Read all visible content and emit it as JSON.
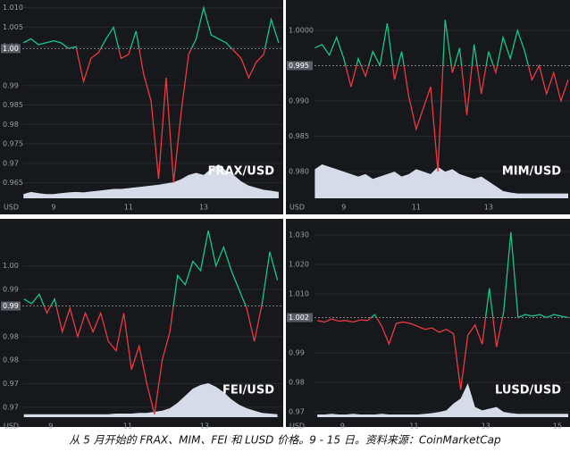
{
  "caption": "从 5 月开始的 FRAX、MIM、FEI 和 LUSD 价格。9 - 15 日。资料来源：CoinMarketCap",
  "chart_data": [
    {
      "type": "line",
      "title": "FRAX/USD",
      "xlabel": "USD",
      "up_color": "#16c784",
      "down_color": "#ea3943",
      "volume_color": "#d5dbe8",
      "grid": true,
      "xlim": [
        8.17,
        15.12
      ],
      "xticks": [
        9,
        11,
        13
      ],
      "ylim": [
        0.961,
        1.012
      ],
      "yticks": [
        {
          "value": 1.01,
          "label": "1.010"
        },
        1.005,
        {
          "value": 1.0,
          "label": "1.00"
        },
        0.99,
        0.985,
        0.98,
        0.975,
        0.97,
        0.965
      ],
      "baseline": {
        "value": 0.9995,
        "label": "1.00"
      },
      "x": [
        8.2,
        8.4,
        8.6,
        8.8,
        9.0,
        9.2,
        9.4,
        9.6,
        9.8,
        10.0,
        10.2,
        10.4,
        10.6,
        10.8,
        11.0,
        11.2,
        11.4,
        11.6,
        11.8,
        12.0,
        12.2,
        12.4,
        12.6,
        12.8,
        13.0,
        13.2,
        13.4,
        13.6,
        13.8,
        14.0,
        14.2,
        14.4,
        14.6,
        14.8,
        15.0
      ],
      "values": [
        1.001,
        1.002,
        1.0005,
        1.001,
        1.0015,
        1.001,
        0.9995,
        1.0,
        0.991,
        0.997,
        0.9985,
        1.002,
        1.005,
        0.997,
        0.998,
        1.004,
        0.993,
        0.986,
        0.966,
        0.992,
        0.965,
        0.983,
        0.998,
        1.002,
        1.01,
        1.003,
        1.002,
        1.001,
        0.999,
        0.997,
        0.992,
        0.996,
        0.998,
        1.007,
        1.001
      ],
      "volume": [
        10,
        15,
        12,
        10,
        10,
        12,
        14,
        15,
        14,
        16,
        18,
        20,
        22,
        22,
        24,
        26,
        28,
        30,
        32,
        35,
        38,
        45,
        55,
        60,
        55,
        70,
        80,
        65,
        55,
        40,
        30,
        25,
        20,
        18,
        15
      ]
    },
    {
      "type": "line",
      "title": "MIM/USD",
      "xlabel": "USD",
      "up_color": "#16c784",
      "down_color": "#ea3943",
      "volume_color": "#d5dbe8",
      "grid": true,
      "xlim": [
        8.19,
        15.25
      ],
      "xticks": [
        9,
        11,
        13
      ],
      "ylim": [
        0.9762,
        1.0043
      ],
      "yticks": [
        {
          "value": 1.0,
          "label": "1.0000"
        },
        {
          "value": 0.99,
          "label": "0.990"
        },
        0.985,
        {
          "value": 0.98,
          "label": "0.980"
        }
      ],
      "baseline": {
        "value": 0.995,
        "label": "0.995"
      },
      "x": [
        8.2,
        8.4,
        8.6,
        8.8,
        9.0,
        9.2,
        9.4,
        9.6,
        9.8,
        10.0,
        10.2,
        10.4,
        10.6,
        10.8,
        11.0,
        11.2,
        11.4,
        11.6,
        11.8,
        12.0,
        12.2,
        12.4,
        12.6,
        12.8,
        13.0,
        13.2,
        13.4,
        13.6,
        13.8,
        14.0,
        14.2,
        14.4,
        14.6,
        14.8,
        15.0,
        15.2
      ],
      "values": [
        0.9975,
        0.998,
        0.9965,
        0.999,
        0.996,
        0.992,
        0.996,
        0.9935,
        0.997,
        0.995,
        1.001,
        0.993,
        0.997,
        0.9905,
        0.986,
        0.989,
        0.992,
        0.98,
        1.0015,
        0.994,
        0.9975,
        0.988,
        0.998,
        0.991,
        0.997,
        0.994,
        0.999,
        0.996,
        1.0,
        0.997,
        0.993,
        0.995,
        0.991,
        0.994,
        0.99,
        0.993
      ],
      "volume": [
        60,
        70,
        65,
        60,
        55,
        50,
        45,
        50,
        40,
        45,
        50,
        55,
        45,
        50,
        60,
        55,
        50,
        65,
        55,
        60,
        50,
        45,
        40,
        45,
        35,
        25,
        15,
        12,
        10,
        10,
        10,
        10,
        10,
        10,
        10,
        10
      ]
    },
    {
      "type": "line",
      "title": "FEI/USD",
      "xlabel": "USD",
      "up_color": "#16c784",
      "down_color": "#ea3943",
      "volume_color": "#d5dbe8",
      "grid": true,
      "xlim": [
        8.26,
        15.05
      ],
      "xticks": [
        9,
        11,
        13
      ],
      "ylim": [
        0.9679,
        1.01
      ],
      "yticks": [
        {
          "value": 1.0,
          "label": "1.00"
        },
        {
          "value": 0.995,
          "label": "0.99"
        },
        {
          "value": 0.985,
          "label": "0.98"
        },
        {
          "value": 0.98,
          "label": "0.98"
        },
        {
          "value": 0.975,
          "label": "0.97"
        },
        0.97
      ],
      "baseline": {
        "value": 0.9915,
        "label": "0.99"
      },
      "x": [
        8.3,
        8.5,
        8.7,
        8.9,
        9.1,
        9.3,
        9.5,
        9.7,
        9.9,
        10.1,
        10.3,
        10.5,
        10.7,
        10.9,
        11.1,
        11.3,
        11.5,
        11.7,
        11.9,
        12.1,
        12.3,
        12.5,
        12.7,
        12.9,
        13.1,
        13.3,
        13.5,
        13.7,
        13.9,
        14.1,
        14.3,
        14.5,
        14.7,
        14.9
      ],
      "values": [
        0.993,
        0.992,
        0.994,
        0.99,
        0.993,
        0.986,
        0.991,
        0.985,
        0.99,
        0.986,
        0.99,
        0.984,
        0.982,
        0.99,
        0.978,
        0.983,
        0.975,
        0.9685,
        0.98,
        0.986,
        0.998,
        0.996,
        1.001,
        0.999,
        1.0075,
        1.0,
        1.004,
        0.999,
        0.995,
        0.991,
        0.984,
        0.992,
        1.003,
        0.997
      ],
      "volume": [
        8,
        8,
        8,
        8,
        8,
        8,
        8,
        8,
        8,
        8,
        8,
        8,
        10,
        10,
        10,
        12,
        12,
        15,
        18,
        25,
        40,
        60,
        80,
        90,
        95,
        85,
        70,
        50,
        35,
        25,
        18,
        12,
        10,
        8
      ]
    },
    {
      "type": "line",
      "title": "LUSD/USD",
      "xlabel": "USD",
      "up_color": "#16c784",
      "down_color": "#ea3943",
      "volume_color": "#d5dbe8",
      "grid": true,
      "xlim": [
        8.22,
        15.35
      ],
      "xticks": [
        9,
        11,
        13,
        15
      ],
      "ylim": [
        0.9682,
        1.0355
      ],
      "yticks": [
        {
          "value": 1.03,
          "label": "1.030"
        },
        {
          "value": 1.02,
          "label": "1.020"
        },
        {
          "value": 1.01,
          "label": "1.010"
        },
        0.99,
        0.98,
        0.97
      ],
      "baseline": {
        "value": 1.002,
        "label": "1.002"
      },
      "x": [
        8.3,
        8.5,
        8.7,
        8.9,
        9.1,
        9.3,
        9.5,
        9.7,
        9.9,
        10.1,
        10.3,
        10.5,
        10.7,
        10.9,
        11.1,
        11.3,
        11.5,
        11.7,
        11.9,
        12.1,
        12.3,
        12.5,
        12.7,
        12.9,
        13.1,
        13.3,
        13.5,
        13.7,
        13.9,
        14.1,
        14.3,
        14.5,
        14.7,
        14.9,
        15.1,
        15.3
      ],
      "values": [
        1.001,
        1.0005,
        1.0015,
        1.0008,
        1.001,
        1.0005,
        1.0012,
        1.001,
        1.003,
        0.999,
        0.993,
        1.0,
        1.0005,
        1.0,
        0.999,
        0.998,
        0.9985,
        0.997,
        0.998,
        0.9965,
        0.9775,
        0.996,
        0.9995,
        0.993,
        1.012,
        0.992,
        1.004,
        1.031,
        1.002,
        1.003,
        1.0025,
        1.003,
        1.002,
        1.003,
        1.0025,
        1.002
      ],
      "volume": [
        8,
        8,
        10,
        8,
        8,
        10,
        8,
        8,
        8,
        10,
        8,
        8,
        8,
        8,
        8,
        10,
        12,
        15,
        20,
        40,
        55,
        100,
        30,
        20,
        25,
        30,
        15,
        12,
        10,
        10,
        10,
        10,
        10,
        10,
        10,
        10
      ]
    }
  ]
}
